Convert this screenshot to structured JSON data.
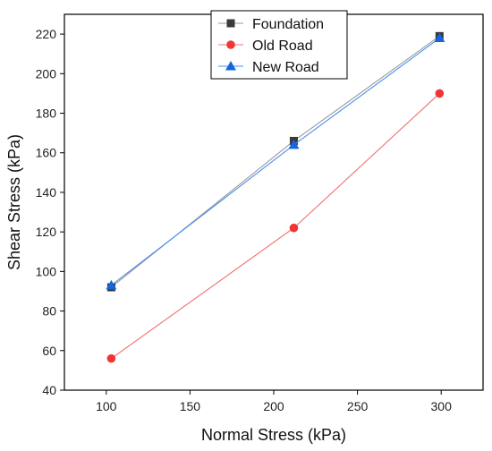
{
  "chart_data": {
    "type": "line",
    "title": "",
    "xlabel": "Normal Stress (kPa)",
    "ylabel": "Shear Stress (kPa)",
    "xlim": [
      75,
      325
    ],
    "ylim": [
      40,
      230
    ],
    "xticks": [
      100,
      150,
      200,
      250,
      300
    ],
    "yticks": [
      40,
      60,
      80,
      100,
      120,
      140,
      160,
      180,
      200,
      220
    ],
    "legend_position": "top-center",
    "grid": false,
    "series": [
      {
        "name": "Foundation",
        "color": "#3a3a3a",
        "line_color": "#9a9a9a",
        "marker": "square",
        "x": [
          103,
          212,
          299
        ],
        "y": [
          92,
          166,
          219
        ]
      },
      {
        "name": "Old Road",
        "color": "#f03535",
        "line_color": "#f07070",
        "marker": "circle",
        "x": [
          103,
          212,
          299
        ],
        "y": [
          56,
          122,
          190
        ]
      },
      {
        "name": "New Road",
        "color": "#1565e0",
        "line_color": "#4a8ef0",
        "marker": "triangle",
        "x": [
          103,
          212,
          299
        ],
        "y": [
          93,
          164,
          218
        ]
      }
    ]
  }
}
